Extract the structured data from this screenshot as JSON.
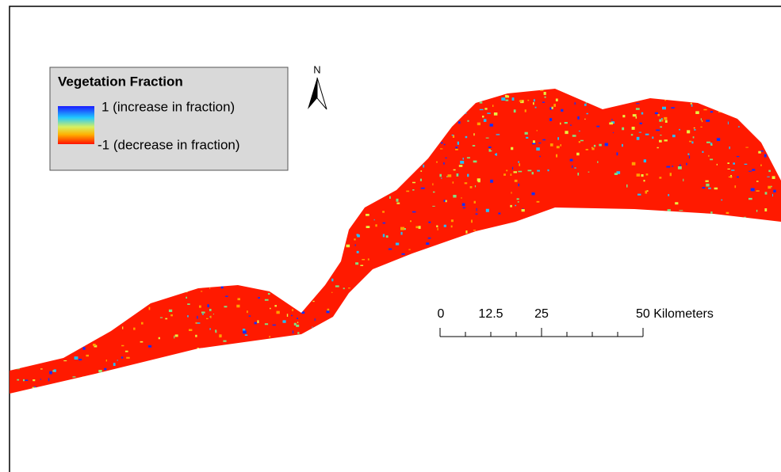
{
  "legend": {
    "title": "Vegetation Fraction",
    "high_label": "1 (increase in fraction)",
    "low_label": "-1 (decrease in fraction)"
  },
  "north_arrow": {
    "label": "N"
  },
  "scale_bar": {
    "labels": [
      "0",
      "12.5",
      "25",
      "50 Kilometers"
    ]
  }
}
